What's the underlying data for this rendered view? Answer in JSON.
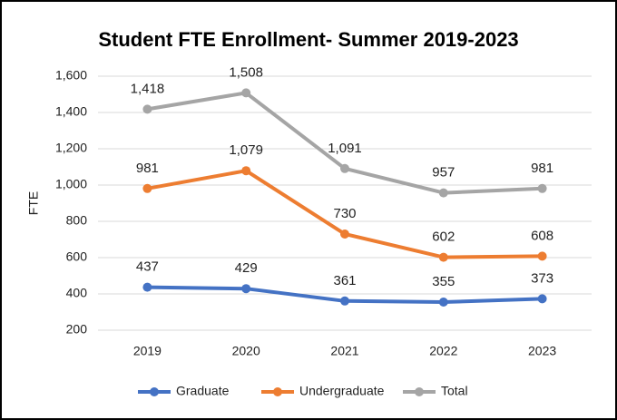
{
  "chart_data": {
    "type": "line",
    "title": "Student FTE Enrollment- Summer 2019-2023",
    "y_label": "FTE",
    "categories": [
      "2019",
      "2020",
      "2021",
      "2022",
      "2023"
    ],
    "series": [
      {
        "name": "Graduate",
        "color": "#4472c4",
        "values": [
          437,
          429,
          361,
          355,
          373
        ]
      },
      {
        "name": "Undergraduate",
        "color": "#ed7d31",
        "values": [
          981,
          1079,
          730,
          602,
          608
        ],
        "value_labels": [
          "981",
          "1,079",
          "730",
          "602",
          "608"
        ]
      },
      {
        "name": "Total",
        "color": "#a5a5a5",
        "values": [
          1418,
          1508,
          1091,
          957,
          981
        ],
        "value_labels": [
          "1,418",
          "1,508",
          "1,091",
          "957",
          "981"
        ]
      }
    ],
    "ylim": [
      200,
      1600
    ],
    "yticks": [
      200,
      400,
      600,
      800,
      {
        "value": 1000,
        "label": "1,000"
      },
      {
        "value": 1200,
        "label": "1,200"
      },
      {
        "value": 1400,
        "label": "1,400"
      },
      {
        "value": 1600,
        "label": "1,600"
      }
    ],
    "grid": true,
    "legend": "bottom"
  }
}
